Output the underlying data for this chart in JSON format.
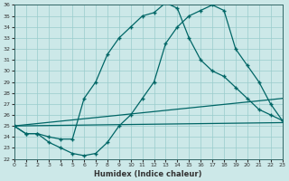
{
  "xlabel": "Humidex (Indice chaleur)",
  "background_color": "#cce8e8",
  "grid_color": "#99cccc",
  "line_color": "#006666",
  "xlim": [
    0,
    23
  ],
  "ylim": [
    22,
    36
  ],
  "xticks": [
    0,
    1,
    2,
    3,
    4,
    5,
    6,
    7,
    8,
    9,
    10,
    11,
    12,
    13,
    14,
    15,
    16,
    17,
    18,
    19,
    20,
    21,
    22,
    23
  ],
  "yticks": [
    22,
    23,
    24,
    25,
    26,
    27,
    28,
    29,
    30,
    31,
    32,
    33,
    34,
    35,
    36
  ],
  "curve1_x": [
    0,
    1,
    2,
    3,
    4,
    5,
    6,
    7,
    8,
    9,
    10,
    11,
    12,
    13,
    14,
    15,
    16,
    17,
    18,
    19,
    20,
    21,
    22,
    23
  ],
  "curve1_y": [
    25.0,
    24.3,
    24.3,
    24.0,
    23.8,
    23.8,
    27.5,
    29.0,
    31.5,
    33.0,
    34.0,
    35.0,
    35.3,
    36.2,
    35.7,
    33.0,
    31.0,
    30.0,
    29.5,
    28.5,
    27.5,
    26.5,
    26.0,
    25.5
  ],
  "curve2_x": [
    0,
    1,
    2,
    3,
    4,
    5,
    6,
    7,
    8,
    9,
    10,
    11,
    12,
    13,
    14,
    15,
    16,
    17,
    18,
    19,
    20,
    21,
    22,
    23
  ],
  "curve2_y": [
    25.0,
    24.3,
    24.3,
    23.5,
    23.0,
    22.5,
    22.3,
    22.5,
    23.5,
    25.0,
    26.0,
    27.5,
    29.0,
    32.5,
    34.0,
    35.0,
    35.5,
    36.0,
    35.5,
    32.0,
    30.5,
    29.0,
    27.0,
    25.5
  ],
  "curve3_x": [
    0,
    23
  ],
  "curve3_y": [
    25.0,
    27.5
  ],
  "curve4_x": [
    0,
    23
  ],
  "curve4_y": [
    25.0,
    25.3
  ]
}
